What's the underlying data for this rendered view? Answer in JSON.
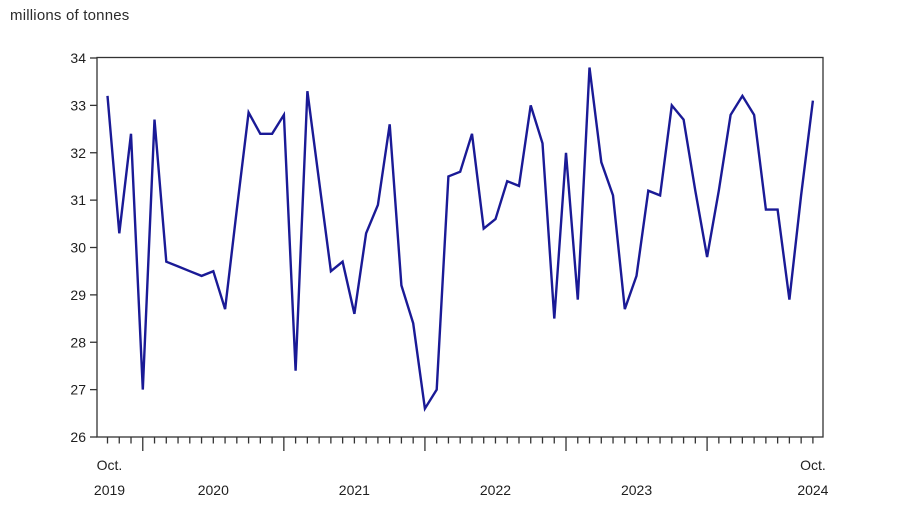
{
  "chart_title": "millions of tonnes",
  "chart_data": {
    "type": "line",
    "title": "millions of tonnes",
    "xlabel": "",
    "ylabel": "millions of tonnes",
    "ylim": [
      26,
      34
    ],
    "y_ticks": [
      26,
      27,
      28,
      29,
      30,
      31,
      32,
      33,
      34
    ],
    "grid": "off",
    "legend": "none",
    "line_color": "#1a1a96",
    "axis_color": "#333333",
    "x": [
      "2019-10",
      "2019-11",
      "2019-12",
      "2020-01",
      "2020-02",
      "2020-03",
      "2020-04",
      "2020-05",
      "2020-06",
      "2020-07",
      "2020-08",
      "2020-09",
      "2020-10",
      "2020-11",
      "2020-12",
      "2021-01",
      "2021-02",
      "2021-03",
      "2021-04",
      "2021-05",
      "2021-06",
      "2021-07",
      "2021-08",
      "2021-09",
      "2021-10",
      "2021-11",
      "2021-12",
      "2022-01",
      "2022-02",
      "2022-03",
      "2022-04",
      "2022-05",
      "2022-06",
      "2022-07",
      "2022-08",
      "2022-09",
      "2022-10",
      "2022-11",
      "2022-12",
      "2023-01",
      "2023-02",
      "2023-03",
      "2023-04",
      "2023-05",
      "2023-06",
      "2023-07",
      "2023-08",
      "2023-09",
      "2023-10",
      "2023-11",
      "2023-12",
      "2024-01",
      "2024-02",
      "2024-03",
      "2024-04",
      "2024-05",
      "2024-06",
      "2024-07",
      "2024-08",
      "2024-09",
      "2024-10"
    ],
    "values": [
      33.2,
      30.3,
      32.4,
      27.0,
      32.7,
      29.7,
      29.6,
      29.5,
      29.4,
      29.5,
      28.7,
      30.8,
      32.85,
      32.4,
      32.4,
      32.8,
      27.4,
      33.3,
      31.4,
      29.5,
      29.7,
      28.6,
      30.3,
      30.9,
      32.6,
      29.2,
      28.4,
      26.6,
      27.0,
      31.5,
      31.6,
      32.4,
      30.4,
      30.6,
      31.4,
      31.3,
      33.0,
      32.2,
      28.5,
      32.0,
      28.9,
      33.8,
      31.8,
      31.1,
      28.7,
      29.4,
      31.2,
      31.1,
      33.0,
      32.7,
      31.2,
      29.8,
      31.2,
      32.8,
      33.2,
      32.8,
      30.8,
      30.8,
      28.9,
      31.1,
      33.1
    ],
    "x_axis": {
      "first_tick_label_line1": "Oct.",
      "first_tick_label_line2": "2019",
      "mid_year_labels": [
        "2020",
        "2021",
        "2022",
        "2023"
      ],
      "last_tick_label_line1": "Oct.",
      "last_tick_label_line2": "2024",
      "minor_tick_interval": "month",
      "major_tick_interval": "january"
    }
  }
}
